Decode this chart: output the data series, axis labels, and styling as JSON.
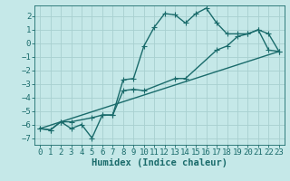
{
  "xlabel": "Humidex (Indice chaleur)",
  "bg_color": "#c5e8e8",
  "grid_color": "#a8d0d0",
  "line_color": "#1a6b6b",
  "xlim": [
    -0.5,
    23.5
  ],
  "ylim": [
    -7.5,
    2.8
  ],
  "xticks": [
    0,
    1,
    2,
    3,
    4,
    5,
    6,
    7,
    8,
    9,
    10,
    11,
    12,
    13,
    14,
    15,
    16,
    17,
    18,
    19,
    20,
    21,
    22,
    23
  ],
  "yticks": [
    -7,
    -6,
    -5,
    -4,
    -3,
    -2,
    -1,
    0,
    1,
    2
  ],
  "line1_x": [
    0,
    1,
    2,
    3,
    4,
    5,
    6,
    7,
    8,
    9,
    10,
    11,
    12,
    13,
    14,
    15,
    16,
    17,
    18,
    19,
    20,
    21,
    22,
    23
  ],
  "line1_y": [
    -6.3,
    -6.4,
    -5.8,
    -6.3,
    -6.0,
    -7.0,
    -5.3,
    -5.3,
    -2.7,
    -2.6,
    -0.2,
    1.2,
    2.2,
    2.1,
    1.5,
    2.2,
    2.6,
    1.5,
    0.7,
    0.7,
    0.7,
    1.0,
    -0.5,
    -0.6
  ],
  "line2_x": [
    0,
    1,
    2,
    3,
    5,
    6,
    7,
    8,
    9,
    10,
    13,
    14,
    17,
    18,
    19,
    20,
    21,
    22,
    23
  ],
  "line2_y": [
    -6.3,
    -6.4,
    -5.8,
    -5.8,
    -5.5,
    -5.3,
    -5.3,
    -3.5,
    -3.4,
    -3.5,
    -2.6,
    -2.6,
    -0.5,
    -0.2,
    0.5,
    0.7,
    1.0,
    0.7,
    -0.6
  ],
  "line3_x": [
    0,
    23
  ],
  "line3_y": [
    -6.3,
    -0.6
  ],
  "marker": "+",
  "markersize": 4,
  "linewidth": 1.0,
  "fontsize_tick": 6.5,
  "fontsize_label": 7.5
}
